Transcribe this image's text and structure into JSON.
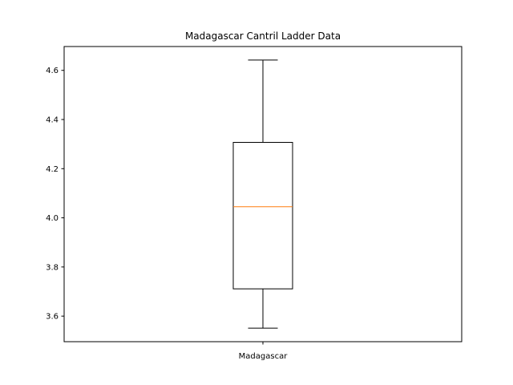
{
  "chart_data": {
    "type": "box",
    "title": "Madagascar Cantril Ladder Data",
    "xlabel": "",
    "ylabel": "",
    "categories": [
      "Madagascar"
    ],
    "boxes": [
      {
        "category": "Madagascar",
        "whisker_low": 3.551,
        "q1": 3.711,
        "median": 4.045,
        "q3": 4.307,
        "whisker_high": 4.642
      }
    ],
    "ylim": [
      3.496,
      4.697
    ],
    "yticks": [
      3.6,
      3.8,
      4.0,
      4.2,
      4.4,
      4.6
    ],
    "ytick_labels": [
      "3.6",
      "3.8",
      "4.0",
      "4.2",
      "4.4",
      "4.6"
    ],
    "grid": false,
    "colors": {
      "box": "#000000",
      "median": "#ff7f0e",
      "axes": "#000000",
      "background": "#ffffff"
    }
  }
}
